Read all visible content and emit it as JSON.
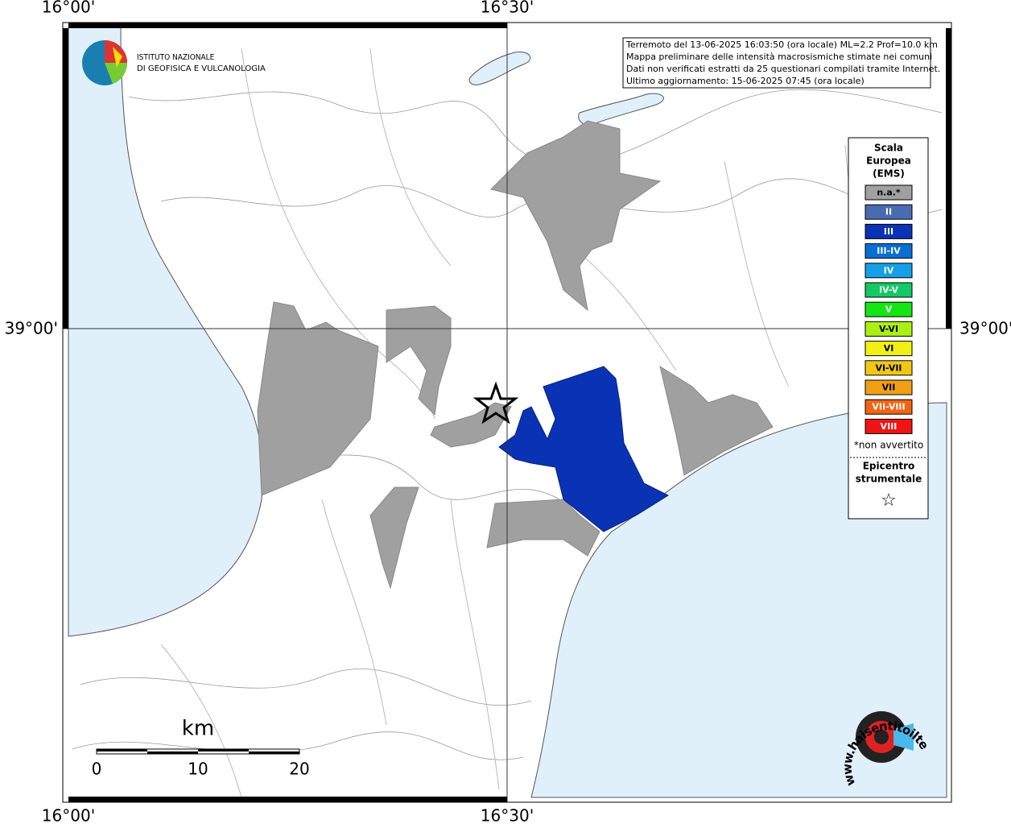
{
  "axes": {
    "top": [
      "16°00'",
      "16°30'"
    ],
    "bottom": [
      "16°00'",
      "16°30'"
    ],
    "left": "39°00'",
    "right": "39°00'"
  },
  "logo": {
    "line1": "ISTITUTO NAZIONALE",
    "line2": "DI GEOFISICA E VULCANOLOGIA"
  },
  "info": [
    "Terremoto del 13-06-2025 16:03:50 (ora locale) ML=2.2 Prof=10.0 km",
    "Mappa preliminare delle intensità macrosismiche stimate nei comuni",
    "Dati non verificati estratti da 25 questionari compilati tramite Internet.",
    "Ultimo aggiornamento: 15-06-2025 07:45 (ora locale)"
  ],
  "legend": {
    "title": [
      "Scala",
      "Europea",
      "(EMS)"
    ],
    "items": [
      {
        "label": "n.a.*",
        "color": "#a0a0a0"
      },
      {
        "label": "II",
        "color": "#4a6bb0"
      },
      {
        "label": "III",
        "color": "#0a32b4"
      },
      {
        "label": "III-IV",
        "color": "#0a6ed2"
      },
      {
        "label": "IV",
        "color": "#14a0e6"
      },
      {
        "label": "IV-V",
        "color": "#14c864"
      },
      {
        "label": "V",
        "color": "#14e614"
      },
      {
        "label": "V-VI",
        "color": "#aaf014"
      },
      {
        "label": "VI",
        "color": "#f0f014"
      },
      {
        "label": "VI-VII",
        "color": "#f0c814"
      },
      {
        "label": "VII",
        "color": "#f0a014"
      },
      {
        "label": "VII-VIII",
        "color": "#f06414"
      },
      {
        "label": "VIII",
        "color": "#f01414"
      }
    ],
    "note": "*non avvertito",
    "epicenter": [
      "Epicentro",
      "strumentale"
    ],
    "symbol": "☆"
  },
  "scale": {
    "unit": "km",
    "ticks": [
      "0",
      "10",
      "20"
    ]
  },
  "watermark": "www.haisentitoilterremoto.it"
}
